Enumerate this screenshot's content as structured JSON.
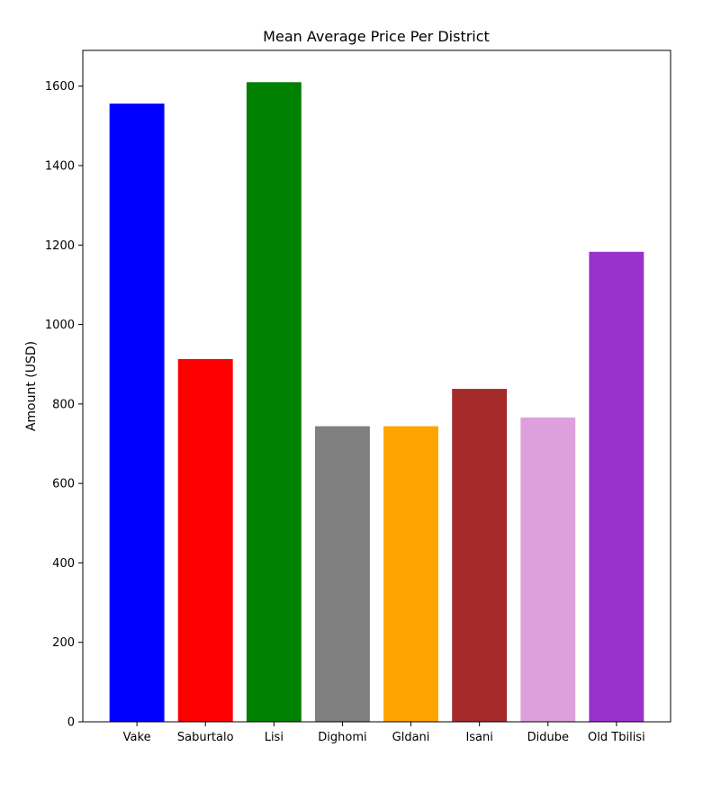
{
  "chart_data": {
    "type": "bar",
    "title": "Mean Average Price Per District",
    "xlabel": "",
    "ylabel": "Amount (USD)",
    "categories": [
      "Vake",
      "Saburtalo",
      "Lisi",
      "Dighomi",
      "Gldani",
      "Isani",
      "Didube",
      "Old Tbilisi"
    ],
    "values": [
      1556,
      913,
      1610,
      744,
      744,
      838,
      766,
      1183
    ],
    "colors": [
      "#0000ff",
      "#ff0000",
      "#008000",
      "#808080",
      "#ffa500",
      "#a52a2a",
      "#dda0dd",
      "#9932cc"
    ],
    "ylim": [
      0,
      1690
    ],
    "yticks": [
      0,
      200,
      400,
      600,
      800,
      1000,
      1200,
      1400,
      1600
    ],
    "grid": false,
    "legend": "none"
  }
}
